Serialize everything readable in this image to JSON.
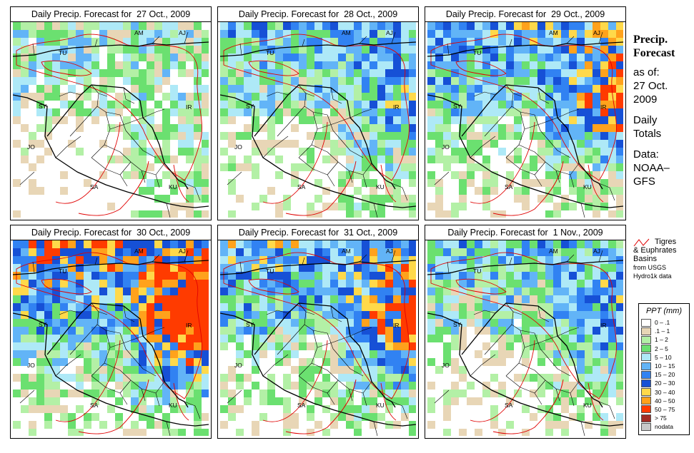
{
  "panels": [
    {
      "title": "Daily Precip. Forecast for  27 Oct., 2009",
      "intensity": 0
    },
    {
      "title": "Daily Precip. Forecast for  28 Oct., 2009",
      "intensity": 1
    },
    {
      "title": "Daily Precip. Forecast for  29 Oct., 2009",
      "intensity": 2
    },
    {
      "title": "Daily Precip. Forecast for  30 Oct., 2009",
      "intensity": 3
    },
    {
      "title": "Daily Precip. Forecast for  31 Oct., 2009",
      "intensity": 2
    },
    {
      "title": "Daily Precip. Forecast for  1 Nov., 2009",
      "intensity": 1
    }
  ],
  "country_labels": [
    "AM",
    "AJ",
    "TU",
    "SY",
    "IR",
    "JO",
    "SA",
    "KU"
  ],
  "sidebar": {
    "heading_1": "Precip.",
    "heading_2": "Forecast",
    "line_1": "as of:",
    "line_2": "27 Oct.",
    "line_3": "2009",
    "line_4": "Daily",
    "line_5": "Totals",
    "line_6": "Data:",
    "line_7": "NOAA–",
    "line_8": "GFS"
  },
  "basin_legend": {
    "line_1": "Tigres",
    "line_2": "& Euphrates",
    "line_3": "Basins",
    "line_4": "from USGS",
    "line_5": "Hydro1k data"
  },
  "precip_legend": {
    "title": "PPT (mm)",
    "items": [
      {
        "label": "0 – .1",
        "color": "#ffffff"
      },
      {
        "label": ".1 – 1",
        "color": "#e8d6b6"
      },
      {
        "label": "1 – 2",
        "color": "#b3f0a6"
      },
      {
        "label": "2 – 5",
        "color": "#6be070"
      },
      {
        "label": "5 – 10",
        "color": "#aee9f7"
      },
      {
        "label": "10 – 15",
        "color": "#62b4f7"
      },
      {
        "label": "15 – 20",
        "color": "#3182f2"
      },
      {
        "label": "20 – 30",
        "color": "#1650d6"
      },
      {
        "label": "30 – 40",
        "color": "#ffd94a"
      },
      {
        "label": "40 – 50",
        "color": "#ffa21c"
      },
      {
        "label": "50 – 75",
        "color": "#ff3b00"
      },
      {
        "label": "> 75",
        "color": "#a32c24"
      },
      {
        "label": "nodata",
        "color": "#c8c8c8"
      }
    ]
  },
  "basin_color": "#e00000"
}
